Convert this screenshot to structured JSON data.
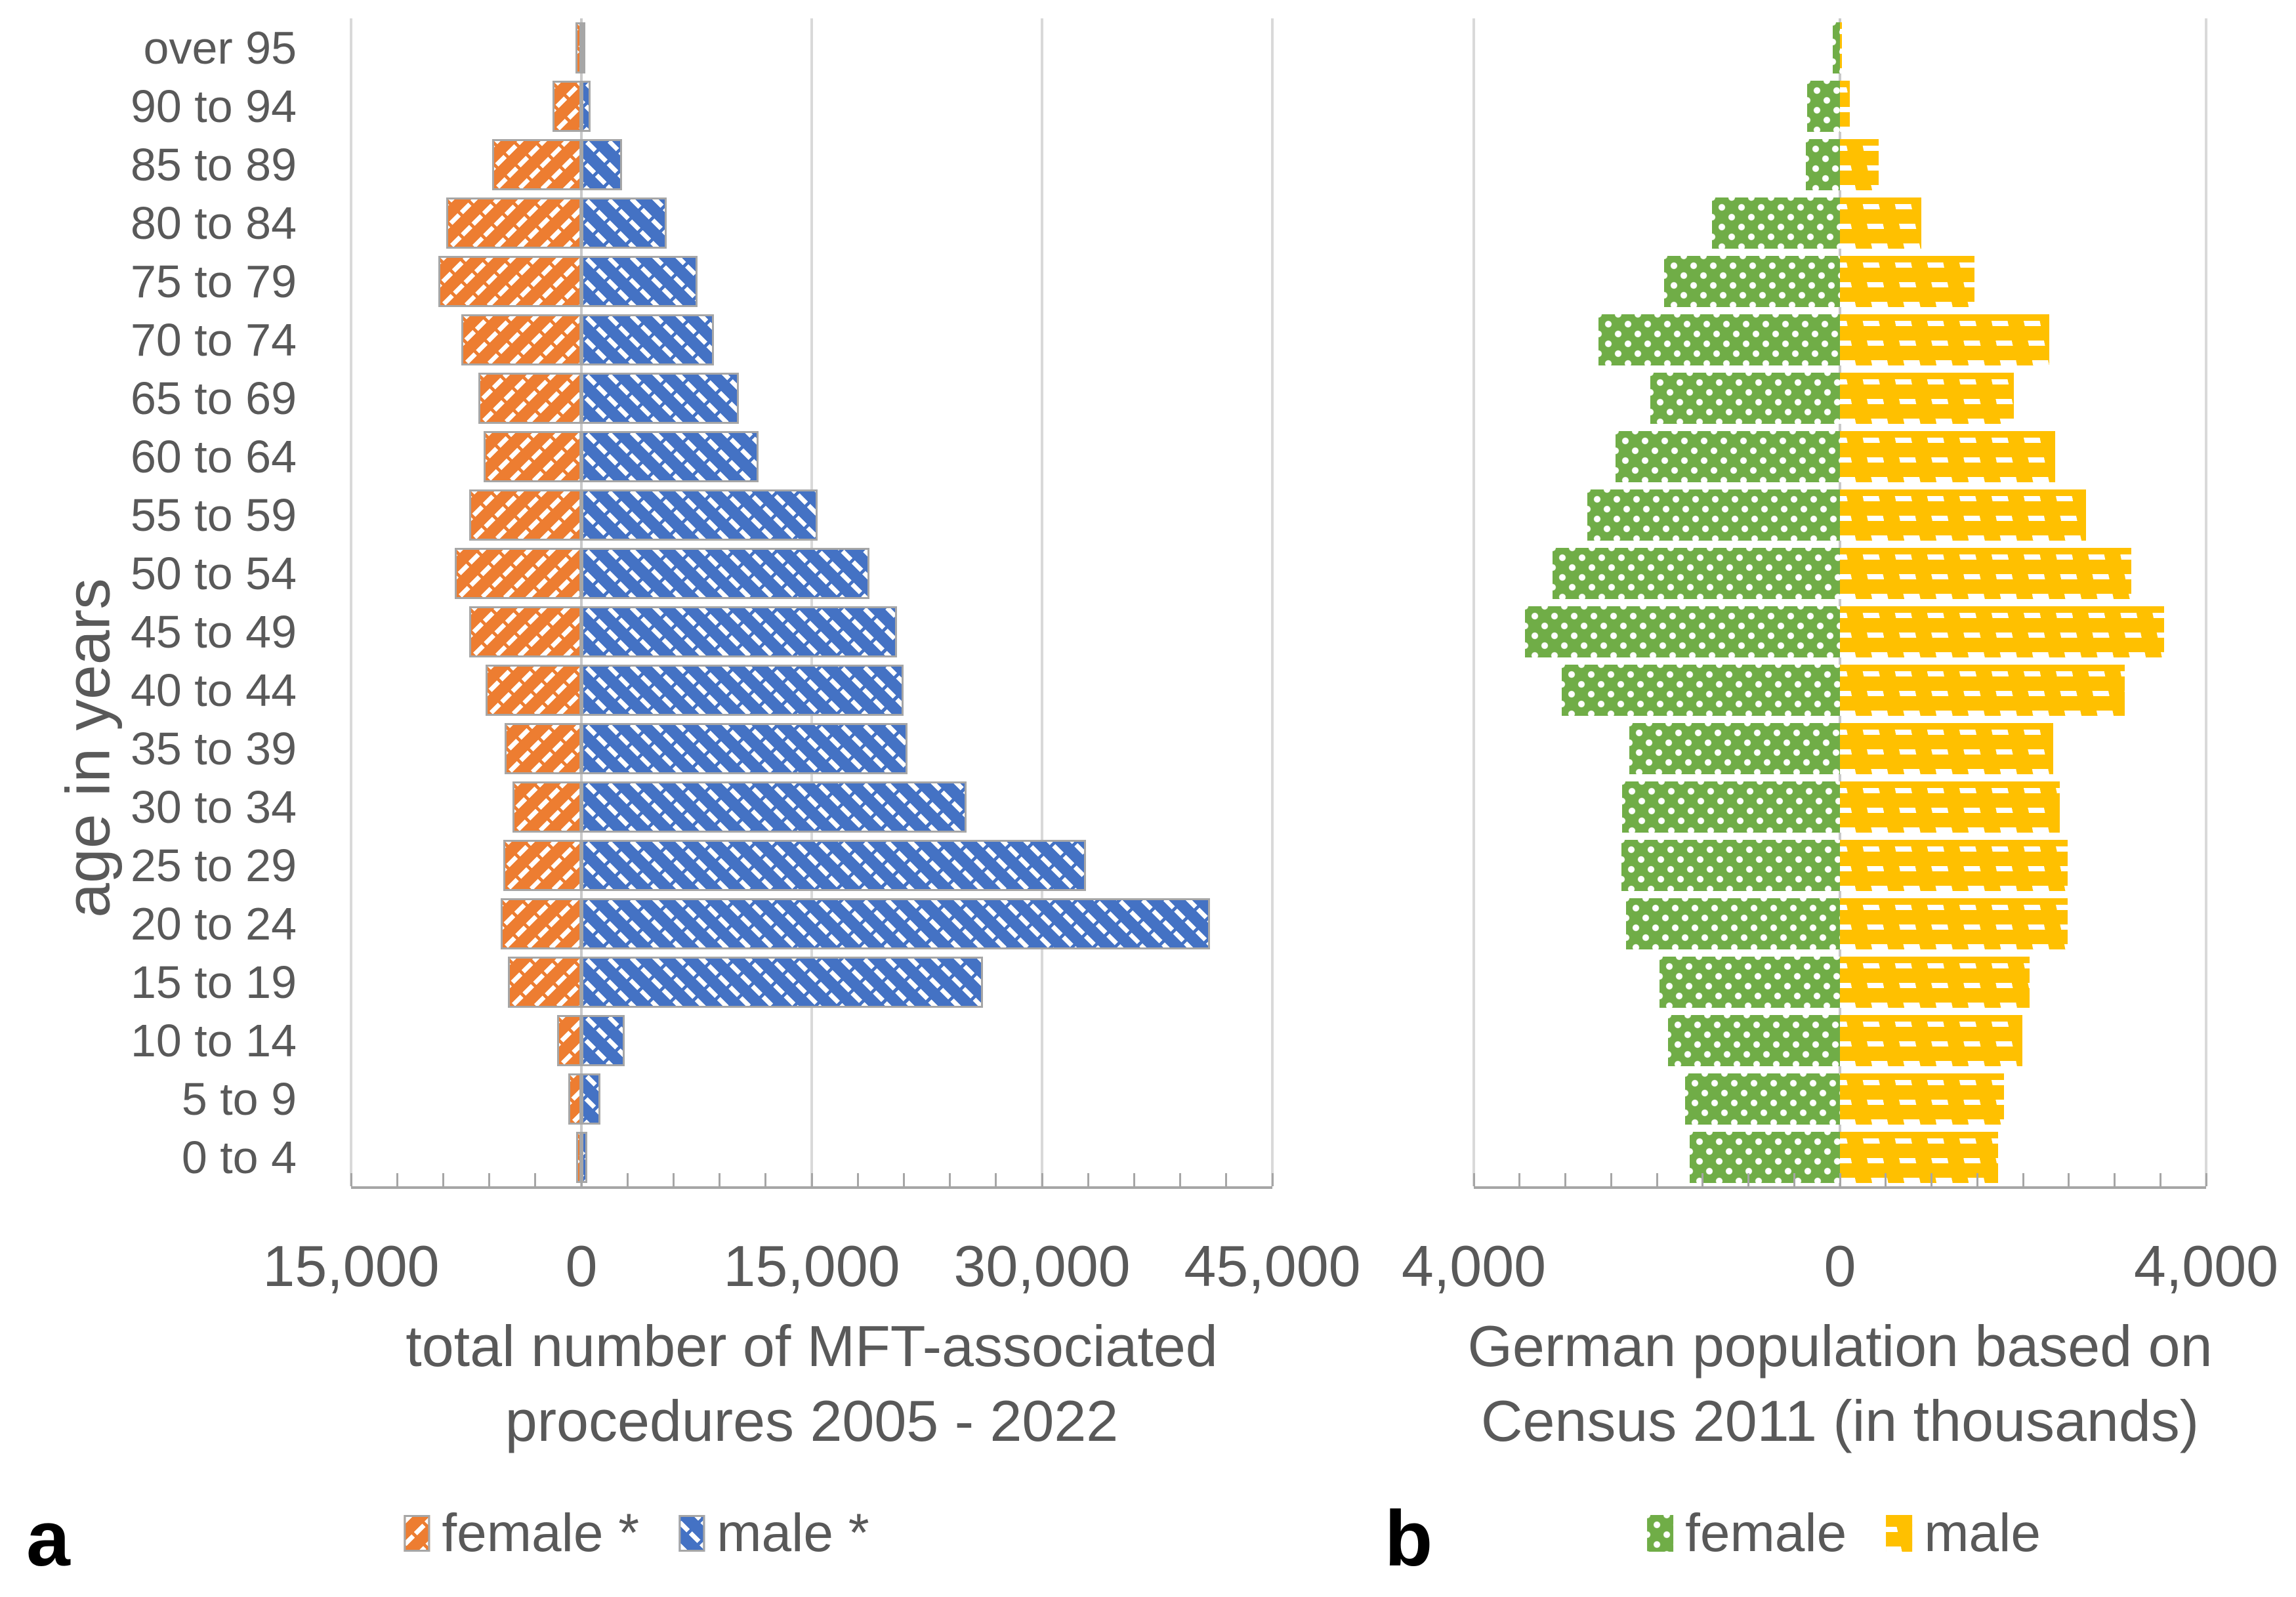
{
  "chart_data": {
    "type": "bar",
    "subtype": "population-pyramid, two panels, horizontal bars",
    "ylabel": "age in years",
    "categories_top_to_bottom": [
      "over 95",
      "90 to 94",
      "85 to 89",
      "80 to 84",
      "75 to 79",
      "70 to 74",
      "65 to 69",
      "60 to 64",
      "55 to 59",
      "50 to 54",
      "45 to 49",
      "40 to 44",
      "35 to 39",
      "30 to 34",
      "25 to 29",
      "20 to 24",
      "15 to 19",
      "10 to 14",
      "5 to 9",
      "0 to 4"
    ],
    "panels": [
      {
        "letter": "a",
        "title_line1": "total number of MFT-associated",
        "title_line2": "procedures 2005 - 2022",
        "xlim": [
          -15000,
          45000
        ],
        "minor_tick_step": 3000,
        "grid": true,
        "x_ticks": [
          {
            "label": "15,000",
            "value": -15000
          },
          {
            "label": "0",
            "value": 0
          },
          {
            "label": "15,000",
            "value": 15000
          },
          {
            "label": "30,000",
            "value": 30000
          },
          {
            "label": "45,000",
            "value": 45000
          }
        ],
        "legend_position": "bottom-center",
        "legend": [
          {
            "label": "female *",
            "color": "#ED7D31",
            "pattern": "diag-down"
          },
          {
            "label": "male *",
            "color": "#4472C4",
            "pattern": "diag-up"
          }
        ],
        "series": [
          {
            "name": "female *",
            "side": "left",
            "color": "#ED7D31",
            "pattern": "diag-down",
            "bordered": true,
            "values": [
              400,
              1900,
              5800,
              8800,
              9300,
              7800,
              6700,
              6350,
              7300,
              8250,
              7300,
              6250,
              5000,
              4500,
              5100,
              5250,
              4800,
              1600,
              850,
              330
            ]
          },
          {
            "name": "male *",
            "side": "right",
            "color": "#4472C4",
            "pattern": "diag-up",
            "bordered": true,
            "values": [
              100,
              600,
              2650,
              5550,
              7550,
              8650,
              10250,
              11550,
              15400,
              18750,
              20550,
              21000,
              21250,
              25100,
              32850,
              40950,
              26150,
              2800,
              1250,
              400
            ]
          }
        ]
      },
      {
        "letter": "b",
        "title_line1": "German population based on",
        "title_line2": "Census 2011 (in thousands)",
        "xlim": [
          -4000,
          4000
        ],
        "minor_tick_step": 500,
        "grid": true,
        "x_ticks": [
          {
            "label": "4,000",
            "value": -4000
          },
          {
            "label": "0",
            "value": 0
          },
          {
            "label": "4,000",
            "value": 4000
          }
        ],
        "legend_position": "bottom-center",
        "legend": [
          {
            "label": "female",
            "color": "#70AD47",
            "pattern": "dots"
          },
          {
            "label": "male",
            "color": "#FFC000",
            "pattern": "dashes"
          }
        ],
        "series": [
          {
            "name": "female",
            "side": "left",
            "color": "#70AD47",
            "pattern": "dots",
            "bordered": false,
            "values": [
              80,
              360,
              370,
              1400,
              1920,
              2640,
              2070,
              2450,
              2760,
              3140,
              3440,
              3040,
              2300,
              2380,
              2390,
              2340,
              1970,
              1880,
              1690,
              1640
            ]
          },
          {
            "name": "male",
            "side": "right",
            "color": "#FFC000",
            "pattern": "dashes",
            "bordered": false,
            "values": [
              20,
              110,
              420,
              890,
              1470,
              2290,
              1900,
              2350,
              2690,
              3180,
              3540,
              3110,
              2330,
              2400,
              2490,
              2490,
              2070,
              1990,
              1790,
              1730
            ]
          }
        ]
      }
    ],
    "style": {
      "text_color": "#595959",
      "gridline_color": "#D9D9D9",
      "axis_color": "#A6A6A6",
      "bar_border_color": "#A6A6A6",
      "background": "#ffffff"
    }
  }
}
